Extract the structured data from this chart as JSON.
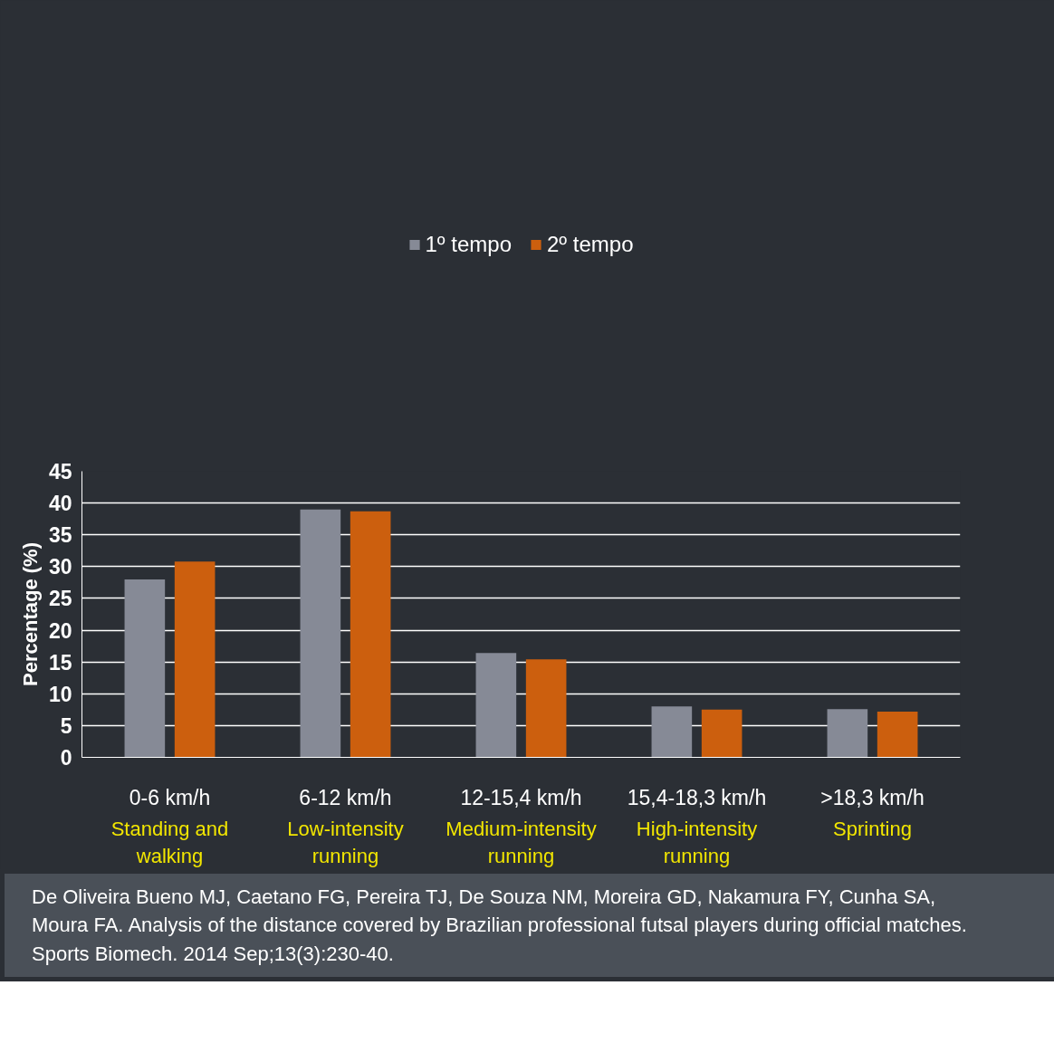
{
  "chart_data": {
    "type": "bar",
    "ylabel": "Percentage (%)",
    "categories": [
      "0-6 km/h",
      "6-12 km/h",
      "12-15,4 km/h",
      "15,4-18,3 km/h",
      ">18,3 km/h"
    ],
    "series": [
      {
        "name": "1º tempo",
        "color": "#868a96",
        "values": [
          28.0,
          39.0,
          16.4,
          8.0,
          7.6
        ]
      },
      {
        "name": "2º tempo",
        "color": "#cc5f0e",
        "values": [
          30.8,
          38.7,
          15.4,
          7.5,
          7.2
        ]
      }
    ],
    "ylim": [
      0,
      45
    ],
    "yticks": [
      0,
      5,
      10,
      15,
      20,
      25,
      30,
      35,
      40,
      45
    ],
    "grid": "y",
    "legend": "top",
    "annotations": [
      "Standing and walking",
      "Low-intensity running",
      "Medium-intensity running",
      "High-intensity running",
      "Sprinting",
      "De Oliveira Bueno MJ, Caetano FG, Pereira TJ, De Souza NM, Moreira GD, Nakamura FY, Cunha SA, Moura FA. Analysis of the distance covered by Brazilian professional futsal players during official matches. Sports Biomech. 2014 Sep;13(3):230-40."
    ]
  }
}
